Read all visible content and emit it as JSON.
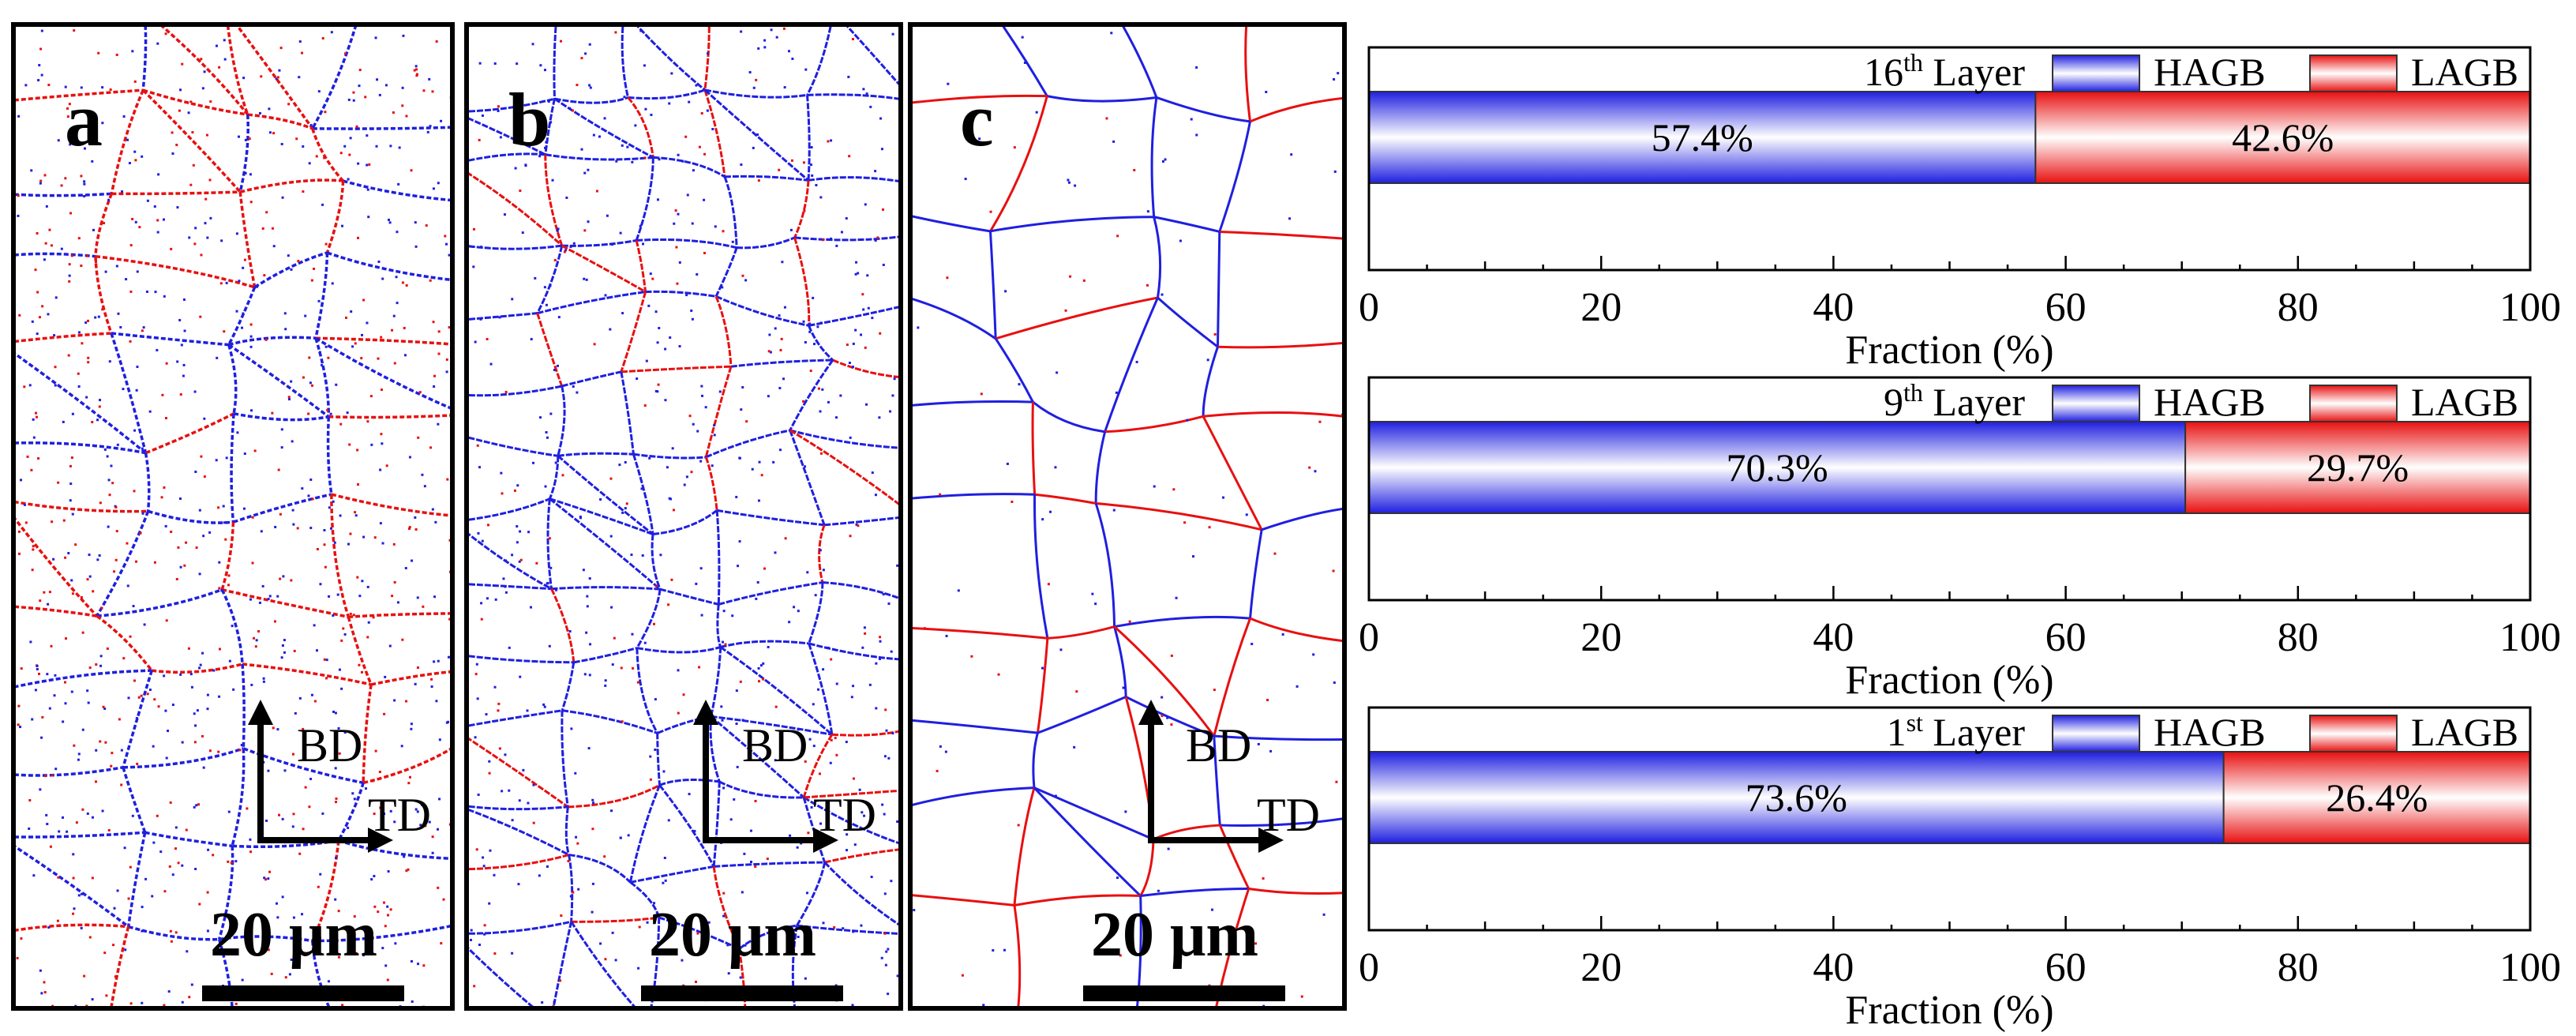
{
  "maps": [
    {
      "letter": "a",
      "bd": "BD",
      "td": "TD",
      "scale": "20 μm"
    },
    {
      "letter": "b",
      "bd": "BD",
      "td": "TD",
      "scale": "20 μm"
    },
    {
      "letter": "c",
      "bd": "BD",
      "td": "TD",
      "scale": "20 μm"
    }
  ],
  "colors": {
    "hagb": "#1f1fe0",
    "lagb": "#e81010"
  },
  "chart_data": [
    {
      "type": "bar",
      "orientation": "horizontal",
      "stacked": true,
      "layer_label": "16th Layer",
      "layer_number": "16",
      "layer_suffix": "th",
      "layer_word": " Layer",
      "series": [
        {
          "name": "HAGB",
          "values": [
            57.4
          ],
          "label": "57.4%"
        },
        {
          "name": "LAGB",
          "values": [
            42.6
          ],
          "label": "42.6%"
        }
      ],
      "xlabel": "Fraction (%)",
      "xlim": [
        0,
        100
      ],
      "xticks": [
        "0",
        "20",
        "40",
        "60",
        "80",
        "100"
      ],
      "legend": "top-right"
    },
    {
      "type": "bar",
      "orientation": "horizontal",
      "stacked": true,
      "layer_label": "9th Layer",
      "layer_number": "9",
      "layer_suffix": "th",
      "layer_word": " Layer",
      "series": [
        {
          "name": "HAGB",
          "values": [
            70.3
          ],
          "label": "70.3%"
        },
        {
          "name": "LAGB",
          "values": [
            29.7
          ],
          "label": "29.7%"
        }
      ],
      "xlabel": "Fraction (%)",
      "xlim": [
        0,
        100
      ],
      "xticks": [
        "0",
        "20",
        "40",
        "60",
        "80",
        "100"
      ],
      "legend": "top-right"
    },
    {
      "type": "bar",
      "orientation": "horizontal",
      "stacked": true,
      "layer_label": "1st Layer",
      "layer_number": "1",
      "layer_suffix": "st",
      "layer_word": " Layer",
      "series": [
        {
          "name": "HAGB",
          "values": [
            73.6
          ],
          "label": "73.6%"
        },
        {
          "name": "LAGB",
          "values": [
            26.4
          ],
          "label": "26.4%"
        }
      ],
      "xlabel": "Fraction (%)",
      "xlim": [
        0,
        100
      ],
      "xticks": [
        "0",
        "20",
        "40",
        "60",
        "80",
        "100"
      ],
      "legend": "top-right"
    }
  ]
}
